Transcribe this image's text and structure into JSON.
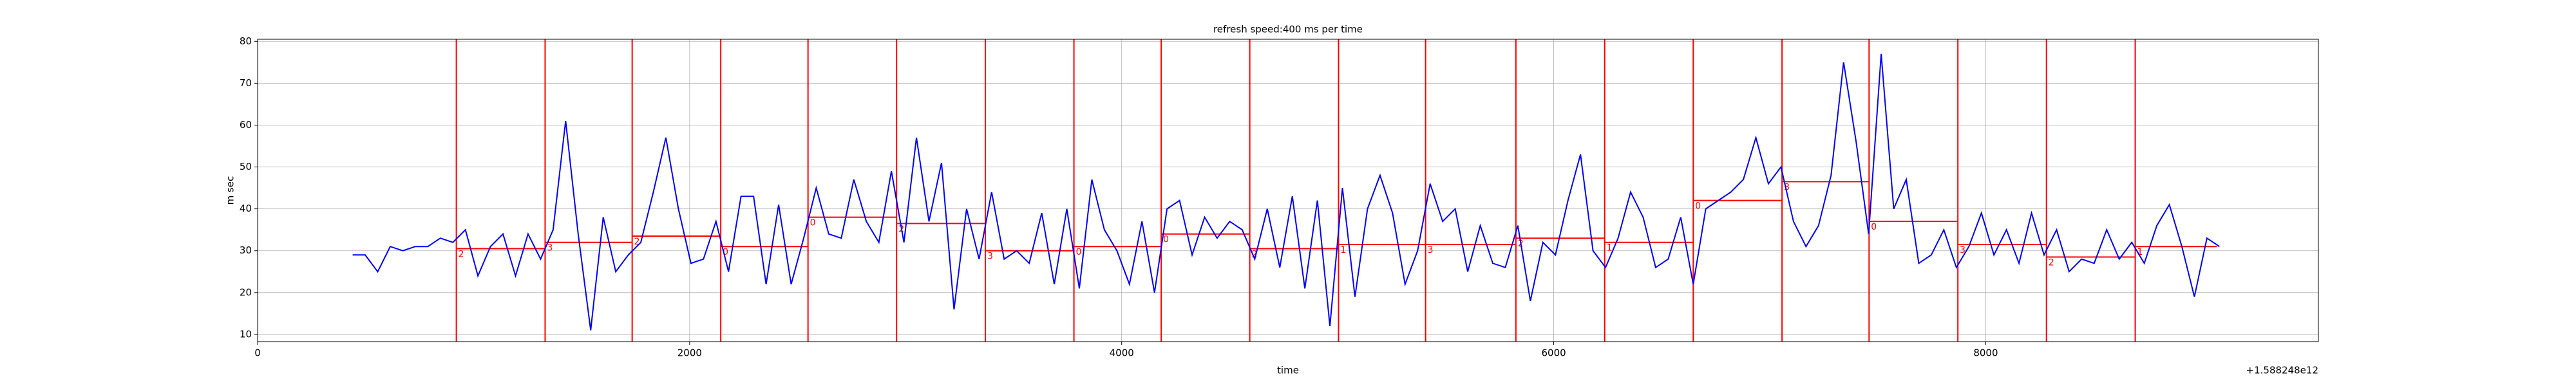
{
  "chart_data": {
    "type": "line",
    "title": "refresh speed:400 ms per time",
    "xlabel": "time",
    "ylabel": "m sec",
    "x_offset_label": "+1.588248e12",
    "xlim": [
      0,
      9540
    ],
    "ylim": [
      8.3,
      80.5
    ],
    "xticks": [
      0,
      2000,
      4000,
      6000,
      8000
    ],
    "yticks": [
      10,
      20,
      30,
      40,
      50,
      60,
      70,
      80
    ],
    "grid": true,
    "x": [
      440,
      498,
      556,
      614,
      672,
      730,
      788,
      846,
      904,
      962,
      1020,
      1078,
      1136,
      1194,
      1252,
      1310,
      1368,
      1426,
      1484,
      1542,
      1600,
      1658,
      1716,
      1774,
      1832,
      1890,
      1948,
      2006,
      2064,
      2122,
      2180,
      2238,
      2296,
      2354,
      2412,
      2470,
      2528,
      2586,
      2644,
      2702,
      2760,
      2818,
      2876,
      2934,
      2992,
      3050,
      3108,
      3166,
      3224,
      3282,
      3340,
      3398,
      3456,
      3514,
      3572,
      3630,
      3688,
      3746,
      3804,
      3862,
      3920,
      3978,
      4036,
      4094,
      4152,
      4210,
      4268,
      4326,
      4384,
      4442,
      4500,
      4558,
      4616,
      4674,
      4732,
      4790,
      4848,
      4906,
      4964,
      5022,
      5080,
      5138,
      5196,
      5254,
      5312,
      5370,
      5428,
      5486,
      5544,
      5602,
      5660,
      5718,
      5776,
      5834,
      5892,
      5950,
      6008,
      6066,
      6124,
      6182,
      6240,
      6298,
      6356,
      6414,
      6472,
      6530,
      6588,
      6646,
      6704,
      6762,
      6820,
      6878,
      6936,
      6994,
      7052,
      7110,
      7168,
      7226,
      7284,
      7342,
      7400,
      7458,
      7516,
      7574,
      7632,
      7690,
      7748,
      7806,
      7864,
      7922,
      7980,
      8038,
      8096,
      8154,
      8212,
      8270,
      8328,
      8386,
      8444,
      8502,
      8560,
      8618,
      8676,
      8734,
      8792,
      8850,
      8908,
      8966,
      9024,
      9082
    ],
    "series": [
      {
        "color": "#0000ff",
        "values": [
          29,
          29,
          25,
          31,
          30,
          31,
          31,
          33,
          32,
          35,
          24,
          31,
          34,
          24,
          34,
          28,
          35,
          61,
          34,
          11,
          38,
          25,
          29,
          32,
          44,
          57,
          40,
          27,
          28,
          37,
          25,
          43,
          43,
          22,
          41,
          22,
          33,
          45,
          34,
          33,
          47,
          37,
          32,
          49,
          32,
          57,
          37,
          51,
          16,
          40,
          28,
          44,
          28,
          30,
          27,
          39,
          22,
          40,
          21,
          47,
          35,
          30,
          22,
          37,
          20,
          40,
          42,
          29,
          38,
          33,
          37,
          35,
          28,
          40,
          26,
          43,
          21,
          42,
          12,
          45,
          19,
          40,
          48,
          39,
          22,
          30,
          46,
          37,
          40,
          25,
          36,
          27,
          26,
          36,
          18,
          32,
          29,
          42,
          53,
          30,
          26,
          33,
          44,
          38,
          26,
          28,
          38,
          22,
          40,
          42,
          44,
          47,
          57,
          46,
          50,
          37,
          31,
          36,
          48,
          75,
          56,
          34,
          77,
          40,
          47,
          27,
          29,
          35,
          26,
          31,
          39,
          29,
          35,
          27,
          39,
          29,
          35,
          25,
          28,
          27,
          35,
          28,
          32,
          27,
          36,
          41,
          31,
          19,
          33,
          31
        ]
      }
    ],
    "segments": {
      "color": "#ff0000",
      "starts": [
        920,
        1331,
        1734,
        2144,
        2548,
        2958,
        3369,
        3779,
        4183,
        4593,
        5004,
        5407,
        5825,
        6236,
        6646,
        7057,
        7460,
        7871,
        8281,
        8692
      ],
      "ends": [
        1331,
        1734,
        2144,
        2548,
        2958,
        3369,
        3779,
        4183,
        4593,
        5004,
        5407,
        5825,
        6236,
        6646,
        7057,
        7460,
        7871,
        8281,
        8692,
        9070
      ],
      "means": [
        30.5,
        32,
        33.5,
        31,
        38,
        36.5,
        30,
        31,
        34,
        30.5,
        31.5,
        31.5,
        33,
        32,
        42,
        46.5,
        37,
        31.5,
        28.5,
        31
      ],
      "labels": [
        "2",
        "3",
        "2",
        "0",
        "0",
        "2",
        "3",
        "0",
        "0",
        "2",
        "1",
        "3",
        "2",
        "1",
        "0",
        "3",
        "0",
        "3",
        "2",
        "1"
      ]
    }
  }
}
